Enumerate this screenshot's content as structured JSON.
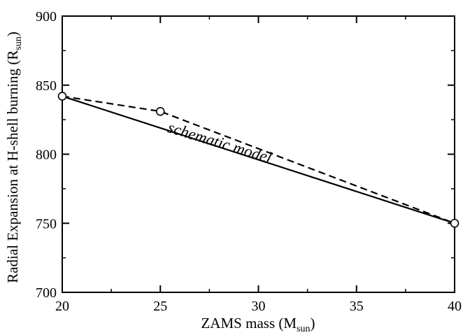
{
  "chart_data": {
    "type": "line",
    "xlabel": "ZAMS mass (M",
    "xlabel_sub": "sun",
    "xlabel_close": ")",
    "ylabel": "Radial Expansion at H-shell burning (R",
    "ylabel_sub": "sun",
    "ylabel_close": ")",
    "xlim": [
      20,
      40
    ],
    "ylim": [
      700,
      900
    ],
    "xticks": [
      20,
      25,
      30,
      35,
      40
    ],
    "yticks": [
      700,
      750,
      800,
      850,
      900
    ],
    "grid": false,
    "series": [
      {
        "style": "solid",
        "x": [
          20,
          40
        ],
        "y": [
          842,
          750
        ]
      },
      {
        "style": "dashed",
        "marker": "open-circle",
        "x": [
          20,
          25,
          40
        ],
        "y": [
          842,
          831,
          750
        ]
      }
    ],
    "annotations": [
      {
        "text": "schematic model",
        "x": 26.8,
        "y": 806
      }
    ]
  }
}
